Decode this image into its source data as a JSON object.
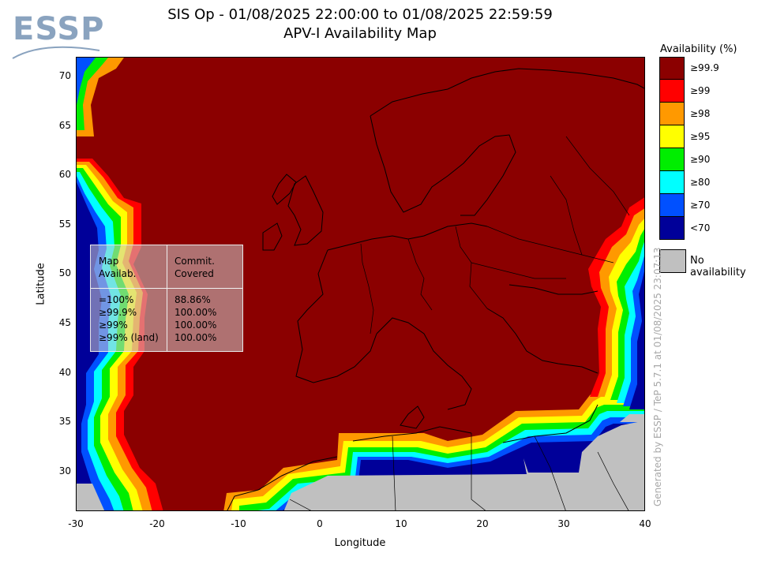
{
  "header": {
    "title_line1": "SIS Op - 01/08/2025 22:00:00 to 01/08/2025 22:59:59",
    "title_line2": "APV-I Availability Map"
  },
  "logo": {
    "text": "ESSP"
  },
  "axes": {
    "xlabel": "Longitude",
    "ylabel": "Latitude",
    "xticks": [
      "-30",
      "-20",
      "-10",
      "0",
      "10",
      "20",
      "30",
      "40"
    ],
    "yticks": [
      "70",
      "65",
      "60",
      "55",
      "50",
      "45",
      "40",
      "35",
      "30"
    ],
    "xlim": [
      -30,
      40
    ],
    "ylim": [
      26,
      72
    ]
  },
  "legend": {
    "title": "Availability (%)",
    "items": [
      {
        "label": "≥99.9",
        "color": "#8b0000"
      },
      {
        "label": "≥99",
        "color": "#ff0000"
      },
      {
        "label": "≥98",
        "color": "#ff9900"
      },
      {
        "label": "≥95",
        "color": "#ffff00"
      },
      {
        "label": "≥90",
        "color": "#00ee00"
      },
      {
        "label": "≥80",
        "color": "#00ffff"
      },
      {
        "label": "≥70",
        "color": "#0050ff"
      },
      {
        "label": "<70",
        "color": "#000099"
      }
    ],
    "no_availability": {
      "label": "No availability",
      "color": "#c0c0c0"
    }
  },
  "stats_table": {
    "header_left": [
      "Map",
      "Availab."
    ],
    "header_right": [
      "Commit.",
      "Covered"
    ],
    "rows_left": [
      "=100%",
      "≥99.9%",
      "≥99%",
      "≥99% (land)"
    ],
    "rows_right": [
      "88.86%",
      "100.00%",
      "100.00%",
      "100.00%"
    ]
  },
  "footer_note": "Generated by ESSP / TeP 5.7.1 at 01/08/2025 23:07:13"
}
